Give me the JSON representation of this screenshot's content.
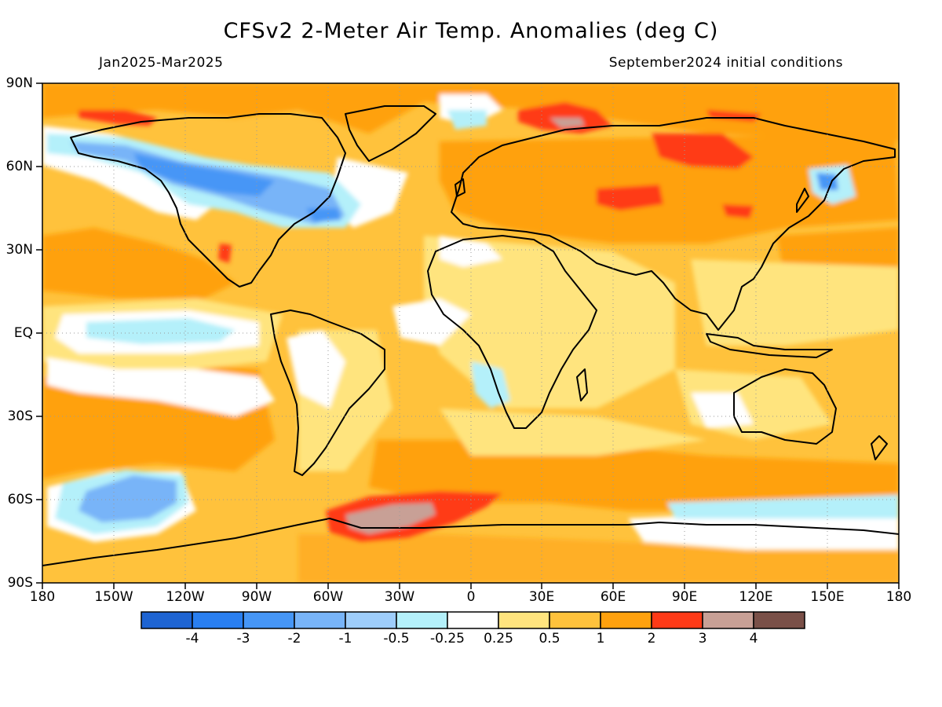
{
  "title": "CFSv2 2-Meter Air Temp. Anomalies (deg C)",
  "subtitle_left": "Jan2025-Mar2025",
  "subtitle_right": "September2024 initial conditions",
  "map": {
    "projection": "equirectangular",
    "lon_range": [
      -180,
      180
    ],
    "lat_range": [
      -90,
      90
    ],
    "grid": "dotted",
    "lat_labels": [
      "90N",
      "60N",
      "30N",
      "EQ",
      "30S",
      "60S",
      "90S"
    ],
    "lon_labels": [
      "180",
      "150W",
      "120W",
      "90W",
      "60W",
      "30W",
      "0",
      "30E",
      "60E",
      "90E",
      "120E",
      "150E",
      "180"
    ]
  },
  "colorbar": {
    "colors": [
      "#1e64d2",
      "#2a7ff0",
      "#4696f6",
      "#78b4f8",
      "#9ecdfa",
      "#b4f0fa",
      "#ffffff",
      "#ffe47e",
      "#ffc23c",
      "#ffa10e",
      "#ff3a17",
      "#c8a096",
      "#7a5048"
    ],
    "labels": [
      "-4",
      "-3",
      "-2",
      "-1",
      "-0.5",
      "-0.25",
      "0.25",
      "0.5",
      "1",
      "2",
      "3",
      "4"
    ]
  }
}
